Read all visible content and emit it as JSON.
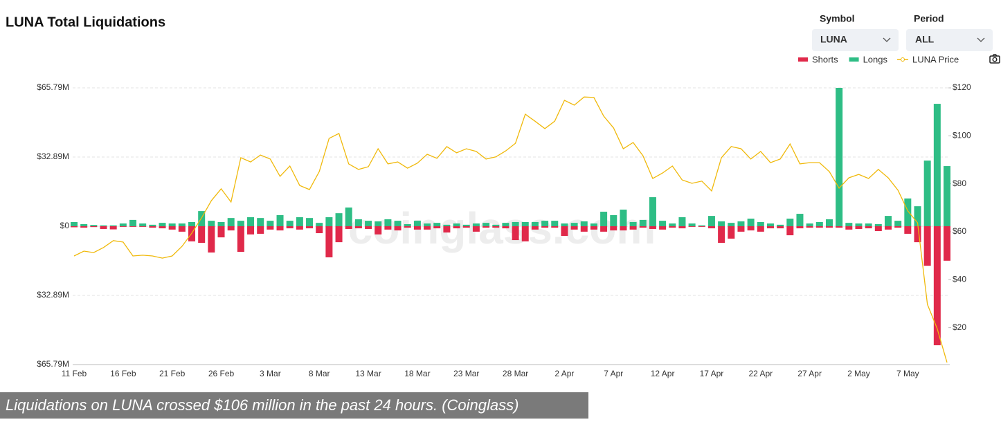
{
  "header": {
    "title": "LUNA Total Liquidations"
  },
  "controls": {
    "symbol_label": "Symbol",
    "symbol_value": "LUNA",
    "period_label": "Period",
    "period_value": "ALL"
  },
  "watermark": "coinglass.com",
  "caption": "Liquidations on LUNA crossed $106 million in the past 24 hours. (Coinglass)",
  "chart_data": {
    "type": "bar",
    "categories": [
      "11 Feb",
      null,
      null,
      null,
      null,
      "16 Feb",
      null,
      null,
      null,
      null,
      "21 Feb",
      null,
      null,
      null,
      null,
      "26 Feb",
      null,
      null,
      null,
      null,
      "3 Mar",
      null,
      null,
      null,
      null,
      "8 Mar",
      null,
      null,
      null,
      null,
      "13 Mar",
      null,
      null,
      null,
      null,
      "18 Mar",
      null,
      null,
      null,
      null,
      "23 Mar",
      null,
      null,
      null,
      null,
      "28 Mar",
      null,
      null,
      null,
      null,
      "2 Apr",
      null,
      null,
      null,
      null,
      "7 Apr",
      null,
      null,
      null,
      null,
      "12 Apr",
      null,
      null,
      null,
      null,
      "17 Apr",
      null,
      null,
      null,
      null,
      "22 Apr",
      null,
      null,
      null,
      null,
      "27 Apr",
      null,
      null,
      null,
      null,
      "2 May",
      null,
      null,
      null,
      null,
      "7 May",
      null,
      null,
      null,
      null
    ],
    "series": [
      {
        "name": "Shorts",
        "color": "#e0294a",
        "values": [
          -0.5,
          -0.7,
          -0.4,
          -1.3,
          -1.5,
          -0.3,
          -0.3,
          -0.3,
          -0.7,
          -1.0,
          -1.6,
          -2.6,
          -7.2,
          -7.9,
          -12.5,
          -5.3,
          -2.0,
          -12.2,
          -3.9,
          -3.6,
          -1.6,
          -2.0,
          -1.0,
          -1.6,
          -1.0,
          -3.3,
          -14.8,
          -7.6,
          -1.3,
          -1.0,
          -1.3,
          -3.9,
          -1.6,
          -2.0,
          -0.7,
          -1.6,
          -1.6,
          -1.0,
          -3.0,
          -1.0,
          -0.7,
          -2.6,
          -0.7,
          -0.7,
          -1.0,
          -6.6,
          -7.2,
          -1.6,
          -0.7,
          -0.7,
          -4.6,
          -1.6,
          -2.6,
          -1.6,
          -2.6,
          -2.0,
          -2.0,
          -1.6,
          -0.7,
          -1.3,
          -1.6,
          -0.7,
          -1.0,
          -0.3,
          -0.3,
          -1.0,
          -7.9,
          -5.9,
          -2.6,
          -2.0,
          -2.6,
          -1.0,
          -1.0,
          -4.3,
          -1.0,
          -0.7,
          -0.7,
          -0.7,
          -0.7,
          -1.6,
          -1.3,
          -1.0,
          -2.3,
          -1.6,
          -0.7,
          -3.6,
          -7.6,
          -18.8,
          -56.6,
          -16.4
        ]
      },
      {
        "name": "Longs",
        "color": "#2ebd85",
        "values": [
          2.0,
          1.0,
          0.6,
          0.4,
          0.4,
          1.3,
          3.0,
          1.3,
          0.7,
          1.6,
          1.3,
          1.3,
          2.0,
          7.2,
          2.6,
          2.0,
          3.9,
          2.6,
          4.3,
          3.9,
          2.6,
          5.3,
          2.6,
          4.3,
          3.9,
          1.6,
          4.3,
          6.2,
          8.9,
          3.3,
          2.6,
          2.3,
          3.3,
          2.6,
          1.0,
          2.6,
          1.3,
          1.6,
          0.7,
          1.3,
          0.7,
          1.3,
          1.6,
          0.7,
          1.6,
          2.0,
          2.0,
          2.0,
          2.6,
          2.6,
          1.3,
          1.6,
          2.3,
          1.3,
          6.9,
          5.3,
          7.9,
          2.0,
          3.0,
          13.8,
          2.6,
          1.3,
          4.3,
          1.3,
          0.4,
          4.9,
          2.3,
          1.6,
          2.3,
          3.6,
          2.0,
          1.3,
          0.7,
          3.6,
          5.9,
          1.3,
          2.0,
          3.3,
          65.79,
          1.6,
          1.3,
          1.3,
          1.0,
          4.9,
          2.6,
          13.2,
          9.5,
          31.2,
          58.2,
          28.6
        ]
      },
      {
        "name": "LUNA Price",
        "color": "#f0b90b",
        "type": "line",
        "axis": "y2",
        "values": [
          49.9,
          51.9,
          51.3,
          53.4,
          56.3,
          55.7,
          49.9,
          50.2,
          49.9,
          49.0,
          49.9,
          53.9,
          59.4,
          65.8,
          73.0,
          77.9,
          72.4,
          90.9,
          89.1,
          92.0,
          90.3,
          83.1,
          87.4,
          79.3,
          77.6,
          85.1,
          98.9,
          101.0,
          88.3,
          86.0,
          87.1,
          94.6,
          88.3,
          89.1,
          86.5,
          88.6,
          92.3,
          90.6,
          95.5,
          92.9,
          94.6,
          93.5,
          90.3,
          91.2,
          93.7,
          96.9,
          109.0,
          106.1,
          103.0,
          106.1,
          114.8,
          112.8,
          116.2,
          116.0,
          108.2,
          103.3,
          94.6,
          97.2,
          91.7,
          82.2,
          84.5,
          87.4,
          81.6,
          80.2,
          81.1,
          77.0,
          90.9,
          95.5,
          94.6,
          90.3,
          93.5,
          88.8,
          90.3,
          96.6,
          88.3,
          88.8,
          88.8,
          85.1,
          78.2,
          82.5,
          83.9,
          82.2,
          86.0,
          82.5,
          77.3,
          68.7,
          63.7,
          29.7,
          19.6,
          5.5
        ]
      }
    ],
    "ylim": [
      -65.79,
      65.79
    ],
    "yticks": [
      {
        "value": -65.79,
        "label": "$65.79M"
      },
      {
        "value": -32.89,
        "label": "$32.89M"
      },
      {
        "value": 0,
        "label": "$0"
      },
      {
        "value": 32.89,
        "label": "$32.89M"
      },
      {
        "value": 65.79,
        "label": "$65.79M"
      }
    ],
    "y2lim": [
      4.6,
      120
    ],
    "y2ticks": [
      {
        "value": 20,
        "label": "$20"
      },
      {
        "value": 40,
        "label": "$40"
      },
      {
        "value": 60,
        "label": "$60"
      },
      {
        "value": 80,
        "label": "$80"
      },
      {
        "value": 100,
        "label": "$100"
      },
      {
        "value": 120,
        "label": "$120"
      }
    ],
    "grid": true
  }
}
